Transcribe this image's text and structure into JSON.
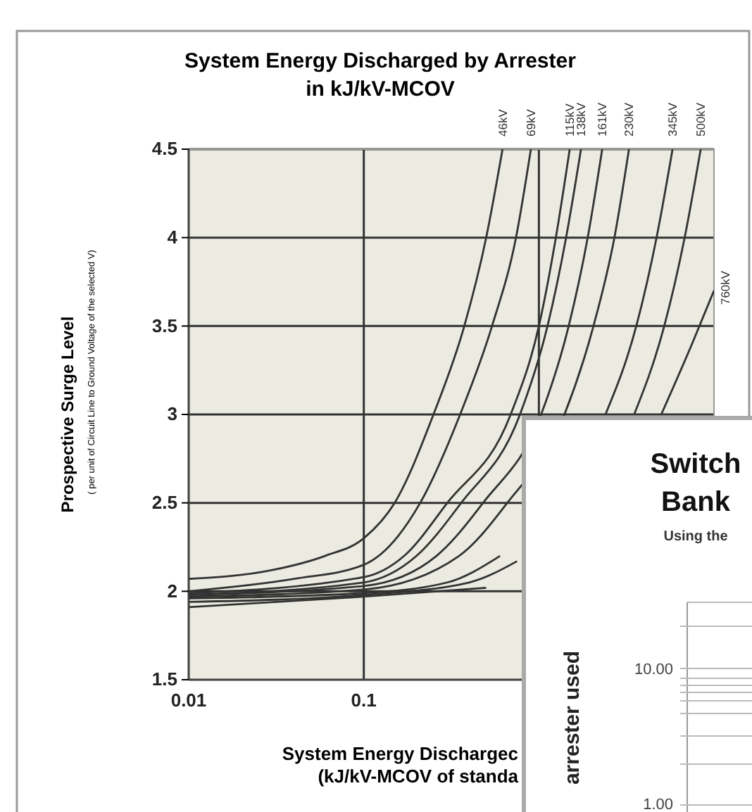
{
  "chart_data": [
    {
      "type": "line",
      "title": "System Energy Discharged by Arrester\nin kJ/kV-MCOV",
      "xlabel": "System Energy Dischargec\n(kJ/kV-MCOV of standa",
      "ylabel": "Prospective Surge Level\n( per unit of Circuit Line to Ground Voltage of the selected V)",
      "log": "x",
      "grid": true,
      "xlim": [
        0.01,
        10
      ],
      "xticks": [
        0.01,
        0.1,
        {
          "value": 1,
          "label": null
        }
      ],
      "ylim": [
        1.5,
        4.5
      ],
      "yticks": [
        1.5,
        2,
        2.5,
        3,
        3.5,
        4,
        4.5
      ],
      "series": [
        {
          "name": "46kV",
          "color": "#333333",
          "x": [
            0.01,
            0.03,
            0.06,
            0.1,
            0.15,
            0.25,
            0.375,
            0.5,
            0.62
          ],
          "values": [
            2.07,
            2.12,
            2.2,
            2.3,
            2.5,
            3,
            3.5,
            4,
            4.5
          ]
        },
        {
          "name": "69kV",
          "color": "#333333",
          "x": [
            0.01,
            0.04,
            0.1,
            0.21,
            0.355,
            0.54,
            0.74,
            0.9
          ],
          "values": [
            2.0,
            2.07,
            2.15,
            2.5,
            3,
            3.5,
            4,
            4.5
          ]
        },
        {
          "name": "115kV",
          "color": "#333333",
          "x": [
            0.01,
            0.1,
            0.17,
            0.3,
            0.69,
            1.0,
            1.25,
            1.5
          ],
          "values": [
            1.99,
            2.08,
            2.2,
            2.5,
            3,
            3.5,
            4,
            4.5
          ]
        },
        {
          "name": "138kV",
          "color": "#333333",
          "x": [
            0.01,
            0.1,
            0.2,
            0.36,
            0.78,
            1.12,
            1.43,
            1.74
          ],
          "values": [
            1.98,
            2.05,
            2.2,
            2.5,
            3,
            3.5,
            4,
            4.5
          ]
        },
        {
          "name": "161kV",
          "color": "#333333",
          "x": [
            0.01,
            0.1,
            0.26,
            0.48,
            1.03,
            1.48,
            1.9,
            2.3
          ],
          "values": [
            1.98,
            2.03,
            2.2,
            2.5,
            3,
            3.5,
            4,
            4.5
          ]
        },
        {
          "name": "230kV",
          "color": "#333333",
          "x": [
            0.01,
            0.1,
            0.35,
            0.66,
            1.4,
            2.05,
            2.7,
            3.27
          ],
          "values": [
            1.97,
            2.01,
            2.2,
            2.5,
            3,
            3.5,
            4,
            4.5
          ]
        },
        {
          "name": "345kV",
          "color": "#333333",
          "x": [
            0.01,
            0.1,
            0.3,
            0.6,
            1.15,
            2.4,
            3.6,
            4.7,
            5.8
          ],
          "values": [
            1.96,
            1.99,
            2.05,
            2.2,
            null,
            3,
            3.5,
            4,
            4.5
          ]
        },
        {
          "name": "500kV",
          "color": "#333333",
          "x": [
            0.01,
            0.1,
            0.4,
            0.75,
            1.65,
            3.5,
            5.2,
            6.8,
            8.4
          ],
          "values": [
            1.94,
            1.98,
            2.05,
            2.17,
            null,
            3,
            3.5,
            4,
            4.5
          ]
        },
        {
          "name": "760kV",
          "color": "#333333",
          "x": [
            0.01,
            0.1,
            0.5,
            1.2,
            2.3,
            5,
            7.5,
            10
          ],
          "values": [
            1.91,
            1.97,
            2.02,
            null,
            null,
            3,
            3.4,
            3.7
          ]
        }
      ]
    },
    {
      "type": "other",
      "title": "Switch\nBank",
      "subtitle": "Using the",
      "ylabel": "arrester used",
      "annotations": [
        "10.00",
        "1.00"
      ]
    }
  ]
}
